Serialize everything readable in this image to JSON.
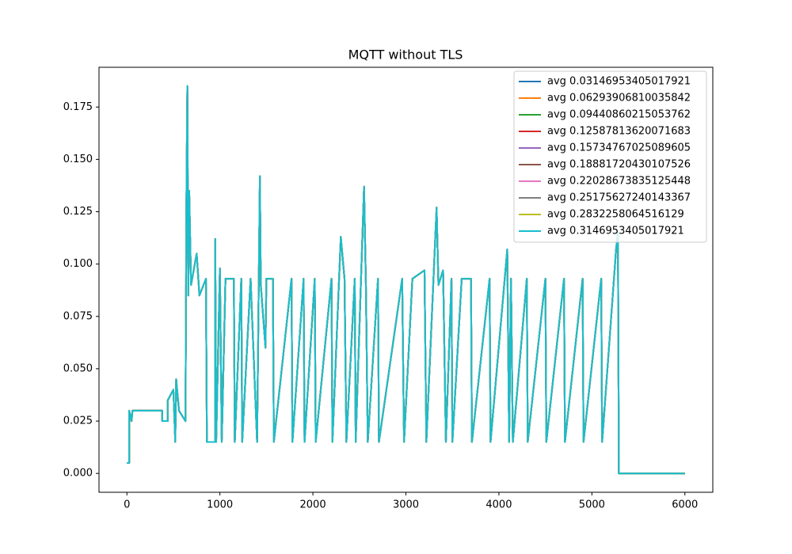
{
  "chart_data": {
    "type": "line",
    "title": "MQTT without TLS",
    "x": [
      0,
      25,
      25,
      50,
      60,
      380,
      380,
      440,
      440,
      500,
      520,
      530,
      560,
      630,
      640,
      650,
      660,
      670,
      690,
      750,
      780,
      850,
      860,
      950,
      950,
      960,
      1000,
      1020,
      1060,
      1150,
      1160,
      1230,
      1240,
      1330,
      1400,
      1430,
      1440,
      1490,
      1500,
      1570,
      1580,
      1770,
      1780,
      1900,
      1910,
      2020,
      2030,
      2200,
      2210,
      2300,
      2340,
      2360,
      2450,
      2460,
      2550,
      2570,
      2590,
      2700,
      2710,
      2960,
      2980,
      3070,
      3200,
      3220,
      3330,
      3350,
      3400,
      3430,
      3490,
      3500,
      3600,
      3700,
      3710,
      3900,
      3910,
      4090,
      4110,
      4130,
      4150,
      4300,
      4310,
      4500,
      4510,
      4700,
      4710,
      4900,
      4910,
      5100,
      5110,
      5260,
      5280,
      5290,
      6000
    ],
    "series": [
      {
        "name": "avg 0.03146953405017921",
        "color": "#1f77b4",
        "values": [
          0.005,
          0.005,
          0.03,
          0.025,
          0.03,
          0.03,
          0.025,
          0.025,
          0.035,
          0.04,
          0.015,
          0.045,
          0.03,
          0.025,
          0.13,
          0.185,
          0.085,
          0.135,
          0.09,
          0.105,
          0.085,
          0.093,
          0.015,
          0.015,
          0.112,
          0.015,
          0.098,
          0.015,
          0.093,
          0.093,
          0.015,
          0.093,
          0.015,
          0.093,
          0.015,
          0.142,
          0.09,
          0.06,
          0.093,
          0.093,
          0.015,
          0.093,
          0.015,
          0.093,
          0.015,
          0.093,
          0.015,
          0.093,
          0.015,
          0.113,
          0.093,
          0.015,
          0.093,
          0.015,
          0.137,
          0.09,
          0.015,
          0.093,
          0.015,
          0.093,
          0.015,
          0.093,
          0.097,
          0.015,
          0.127,
          0.09,
          0.097,
          0.015,
          0.093,
          0.015,
          0.093,
          0.093,
          0.015,
          0.093,
          0.015,
          0.107,
          0.015,
          0.093,
          0.015,
          0.093,
          0.015,
          0.093,
          0.015,
          0.093,
          0.015,
          0.093,
          0.015,
          0.093,
          0.015,
          0.107,
          0.115,
          0,
          0
        ]
      },
      {
        "name": "avg 0.06293906810035842",
        "color": "#ff7f0e",
        "values": [
          0.005,
          0.005,
          0.03,
          0.025,
          0.03,
          0.03,
          0.025,
          0.025,
          0.035,
          0.04,
          0.015,
          0.045,
          0.03,
          0.025,
          0.13,
          0.185,
          0.085,
          0.135,
          0.09,
          0.105,
          0.085,
          0.093,
          0.015,
          0.015,
          0.112,
          0.015,
          0.098,
          0.015,
          0.093,
          0.093,
          0.015,
          0.093,
          0.015,
          0.093,
          0.015,
          0.142,
          0.09,
          0.06,
          0.093,
          0.093,
          0.015,
          0.093,
          0.015,
          0.093,
          0.015,
          0.093,
          0.015,
          0.093,
          0.015,
          0.113,
          0.093,
          0.015,
          0.093,
          0.015,
          0.137,
          0.09,
          0.015,
          0.093,
          0.015,
          0.093,
          0.015,
          0.093,
          0.097,
          0.015,
          0.127,
          0.09,
          0.097,
          0.015,
          0.093,
          0.015,
          0.093,
          0.093,
          0.015,
          0.093,
          0.015,
          0.107,
          0.015,
          0.093,
          0.015,
          0.093,
          0.015,
          0.093,
          0.015,
          0.093,
          0.015,
          0.093,
          0.015,
          0.093,
          0.015,
          0.107,
          0.115,
          0,
          0
        ]
      },
      {
        "name": "avg 0.09440860215053762",
        "color": "#2ca02c",
        "values": [
          0.005,
          0.005,
          0.03,
          0.025,
          0.03,
          0.03,
          0.025,
          0.025,
          0.035,
          0.04,
          0.015,
          0.045,
          0.03,
          0.025,
          0.13,
          0.185,
          0.085,
          0.135,
          0.09,
          0.105,
          0.085,
          0.093,
          0.015,
          0.015,
          0.112,
          0.015,
          0.098,
          0.015,
          0.093,
          0.093,
          0.015,
          0.093,
          0.015,
          0.093,
          0.015,
          0.142,
          0.09,
          0.06,
          0.093,
          0.093,
          0.015,
          0.093,
          0.015,
          0.093,
          0.015,
          0.093,
          0.015,
          0.093,
          0.015,
          0.113,
          0.093,
          0.015,
          0.093,
          0.015,
          0.137,
          0.09,
          0.015,
          0.093,
          0.015,
          0.093,
          0.015,
          0.093,
          0.097,
          0.015,
          0.127,
          0.09,
          0.097,
          0.015,
          0.093,
          0.015,
          0.093,
          0.093,
          0.015,
          0.093,
          0.015,
          0.107,
          0.015,
          0.093,
          0.015,
          0.093,
          0.015,
          0.093,
          0.015,
          0.093,
          0.015,
          0.093,
          0.015,
          0.093,
          0.015,
          0.107,
          0.115,
          0,
          0
        ]
      },
      {
        "name": "avg 0.12587813620071683",
        "color": "#d62728",
        "values": [
          0.005,
          0.005,
          0.03,
          0.025,
          0.03,
          0.03,
          0.025,
          0.025,
          0.035,
          0.04,
          0.015,
          0.045,
          0.03,
          0.025,
          0.13,
          0.185,
          0.085,
          0.135,
          0.09,
          0.105,
          0.085,
          0.093,
          0.015,
          0.015,
          0.112,
          0.015,
          0.098,
          0.015,
          0.093,
          0.093,
          0.015,
          0.093,
          0.015,
          0.093,
          0.015,
          0.142,
          0.09,
          0.06,
          0.093,
          0.093,
          0.015,
          0.093,
          0.015,
          0.093,
          0.015,
          0.093,
          0.015,
          0.093,
          0.015,
          0.113,
          0.093,
          0.015,
          0.093,
          0.015,
          0.137,
          0.09,
          0.015,
          0.093,
          0.015,
          0.093,
          0.015,
          0.093,
          0.097,
          0.015,
          0.127,
          0.09,
          0.097,
          0.015,
          0.093,
          0.015,
          0.093,
          0.093,
          0.015,
          0.093,
          0.015,
          0.107,
          0.015,
          0.093,
          0.015,
          0.093,
          0.015,
          0.093,
          0.015,
          0.093,
          0.015,
          0.093,
          0.015,
          0.093,
          0.015,
          0.107,
          0.115,
          0,
          0
        ]
      },
      {
        "name": "avg 0.15734767025089605",
        "color": "#9467bd",
        "values": [
          0.005,
          0.005,
          0.03,
          0.025,
          0.03,
          0.03,
          0.025,
          0.025,
          0.035,
          0.04,
          0.015,
          0.045,
          0.03,
          0.025,
          0.13,
          0.185,
          0.085,
          0.135,
          0.09,
          0.105,
          0.085,
          0.093,
          0.015,
          0.015,
          0.112,
          0.015,
          0.098,
          0.015,
          0.093,
          0.093,
          0.015,
          0.093,
          0.015,
          0.093,
          0.015,
          0.142,
          0.09,
          0.06,
          0.093,
          0.093,
          0.015,
          0.093,
          0.015,
          0.093,
          0.015,
          0.093,
          0.015,
          0.093,
          0.015,
          0.113,
          0.093,
          0.015,
          0.093,
          0.015,
          0.137,
          0.09,
          0.015,
          0.093,
          0.015,
          0.093,
          0.015,
          0.093,
          0.097,
          0.015,
          0.127,
          0.09,
          0.097,
          0.015,
          0.093,
          0.015,
          0.093,
          0.093,
          0.015,
          0.093,
          0.015,
          0.107,
          0.015,
          0.093,
          0.015,
          0.093,
          0.015,
          0.093,
          0.015,
          0.093,
          0.015,
          0.093,
          0.015,
          0.093,
          0.015,
          0.107,
          0.115,
          0,
          0
        ]
      },
      {
        "name": "avg 0.18881720430107526",
        "color": "#8c564b",
        "values": [
          0.005,
          0.005,
          0.03,
          0.025,
          0.03,
          0.03,
          0.025,
          0.025,
          0.035,
          0.04,
          0.015,
          0.045,
          0.03,
          0.025,
          0.13,
          0.185,
          0.085,
          0.135,
          0.09,
          0.105,
          0.085,
          0.093,
          0.015,
          0.015,
          0.112,
          0.015,
          0.098,
          0.015,
          0.093,
          0.093,
          0.015,
          0.093,
          0.015,
          0.093,
          0.015,
          0.142,
          0.09,
          0.06,
          0.093,
          0.093,
          0.015,
          0.093,
          0.015,
          0.093,
          0.015,
          0.093,
          0.015,
          0.093,
          0.015,
          0.113,
          0.093,
          0.015,
          0.093,
          0.015,
          0.137,
          0.09,
          0.015,
          0.093,
          0.015,
          0.093,
          0.015,
          0.093,
          0.097,
          0.015,
          0.127,
          0.09,
          0.097,
          0.015,
          0.093,
          0.015,
          0.093,
          0.093,
          0.015,
          0.093,
          0.015,
          0.107,
          0.015,
          0.093,
          0.015,
          0.093,
          0.015,
          0.093,
          0.015,
          0.093,
          0.015,
          0.093,
          0.015,
          0.093,
          0.015,
          0.107,
          0.115,
          0,
          0
        ]
      },
      {
        "name": "avg 0.22028673835125448",
        "color": "#e377c2",
        "values": [
          0.005,
          0.005,
          0.03,
          0.025,
          0.03,
          0.03,
          0.025,
          0.025,
          0.035,
          0.04,
          0.015,
          0.045,
          0.03,
          0.025,
          0.13,
          0.185,
          0.085,
          0.135,
          0.09,
          0.105,
          0.085,
          0.093,
          0.015,
          0.015,
          0.112,
          0.015,
          0.098,
          0.015,
          0.093,
          0.093,
          0.015,
          0.093,
          0.015,
          0.093,
          0.015,
          0.142,
          0.09,
          0.06,
          0.093,
          0.093,
          0.015,
          0.093,
          0.015,
          0.093,
          0.015,
          0.093,
          0.015,
          0.093,
          0.015,
          0.113,
          0.093,
          0.015,
          0.093,
          0.015,
          0.137,
          0.09,
          0.015,
          0.093,
          0.015,
          0.093,
          0.015,
          0.093,
          0.097,
          0.015,
          0.127,
          0.09,
          0.097,
          0.015,
          0.093,
          0.015,
          0.093,
          0.093,
          0.015,
          0.093,
          0.015,
          0.107,
          0.015,
          0.093,
          0.015,
          0.093,
          0.015,
          0.093,
          0.015,
          0.093,
          0.015,
          0.093,
          0.015,
          0.093,
          0.015,
          0.107,
          0.115,
          0,
          0
        ]
      },
      {
        "name": "avg 0.25175627240143367",
        "color": "#7f7f7f",
        "values": [
          0.005,
          0.005,
          0.03,
          0.025,
          0.03,
          0.03,
          0.025,
          0.025,
          0.035,
          0.04,
          0.015,
          0.045,
          0.03,
          0.025,
          0.13,
          0.185,
          0.085,
          0.135,
          0.09,
          0.105,
          0.085,
          0.093,
          0.015,
          0.015,
          0.112,
          0.015,
          0.098,
          0.015,
          0.093,
          0.093,
          0.015,
          0.093,
          0.015,
          0.093,
          0.015,
          0.142,
          0.09,
          0.06,
          0.093,
          0.093,
          0.015,
          0.093,
          0.015,
          0.093,
          0.015,
          0.093,
          0.015,
          0.093,
          0.015,
          0.113,
          0.093,
          0.015,
          0.093,
          0.015,
          0.137,
          0.09,
          0.015,
          0.093,
          0.015,
          0.093,
          0.015,
          0.093,
          0.097,
          0.015,
          0.127,
          0.09,
          0.097,
          0.015,
          0.093,
          0.015,
          0.093,
          0.093,
          0.015,
          0.093,
          0.015,
          0.107,
          0.015,
          0.093,
          0.015,
          0.093,
          0.015,
          0.093,
          0.015,
          0.093,
          0.015,
          0.093,
          0.015,
          0.093,
          0.015,
          0.107,
          0.115,
          0,
          0
        ]
      },
      {
        "name": "avg 0.2832258064516129",
        "color": "#bcbd22",
        "values": [
          0.005,
          0.005,
          0.03,
          0.025,
          0.03,
          0.03,
          0.025,
          0.025,
          0.035,
          0.04,
          0.015,
          0.045,
          0.03,
          0.025,
          0.13,
          0.185,
          0.085,
          0.135,
          0.09,
          0.105,
          0.085,
          0.093,
          0.015,
          0.015,
          0.112,
          0.015,
          0.098,
          0.015,
          0.093,
          0.093,
          0.015,
          0.093,
          0.015,
          0.093,
          0.015,
          0.142,
          0.09,
          0.06,
          0.093,
          0.093,
          0.015,
          0.093,
          0.015,
          0.093,
          0.015,
          0.093,
          0.015,
          0.093,
          0.015,
          0.113,
          0.093,
          0.015,
          0.093,
          0.015,
          0.137,
          0.09,
          0.015,
          0.093,
          0.015,
          0.093,
          0.015,
          0.093,
          0.097,
          0.015,
          0.127,
          0.09,
          0.097,
          0.015,
          0.093,
          0.015,
          0.093,
          0.093,
          0.015,
          0.093,
          0.015,
          0.107,
          0.015,
          0.093,
          0.015,
          0.093,
          0.015,
          0.093,
          0.015,
          0.093,
          0.015,
          0.093,
          0.015,
          0.093,
          0.015,
          0.107,
          0.115,
          0,
          0
        ]
      },
      {
        "name": "avg 0.3146953405017921",
        "color": "#17becf",
        "values": [
          0.005,
          0.005,
          0.03,
          0.025,
          0.03,
          0.03,
          0.025,
          0.025,
          0.035,
          0.04,
          0.015,
          0.045,
          0.03,
          0.025,
          0.13,
          0.185,
          0.085,
          0.135,
          0.09,
          0.105,
          0.085,
          0.093,
          0.015,
          0.015,
          0.112,
          0.015,
          0.098,
          0.015,
          0.093,
          0.093,
          0.015,
          0.093,
          0.015,
          0.093,
          0.015,
          0.142,
          0.09,
          0.06,
          0.093,
          0.093,
          0.015,
          0.093,
          0.015,
          0.093,
          0.015,
          0.093,
          0.015,
          0.093,
          0.015,
          0.113,
          0.093,
          0.015,
          0.093,
          0.015,
          0.137,
          0.09,
          0.015,
          0.093,
          0.015,
          0.093,
          0.015,
          0.093,
          0.097,
          0.015,
          0.127,
          0.09,
          0.097,
          0.015,
          0.093,
          0.015,
          0.093,
          0.093,
          0.015,
          0.093,
          0.015,
          0.107,
          0.015,
          0.093,
          0.015,
          0.093,
          0.015,
          0.093,
          0.015,
          0.093,
          0.015,
          0.093,
          0.015,
          0.093,
          0.015,
          0.107,
          0.115,
          0,
          0
        ]
      }
    ],
    "xlim": [
      -300,
      6300
    ],
    "xticks": [
      0,
      1000,
      2000,
      3000,
      4000,
      5000,
      6000
    ],
    "ylim": [
      -0.009,
      0.194
    ],
    "yticks": [
      {
        "value": 0,
        "label": "0.000"
      },
      {
        "value": 0.025,
        "label": "0.025"
      },
      {
        "value": 0.05,
        "label": "0.050"
      },
      {
        "value": 0.075,
        "label": "0.075"
      },
      {
        "value": 0.1,
        "label": "0.100"
      },
      {
        "value": 0.125,
        "label": "0.125"
      },
      {
        "value": 0.15,
        "label": "0.150"
      },
      {
        "value": 0.175,
        "label": "0.175"
      }
    ],
    "legend": "upper right"
  }
}
